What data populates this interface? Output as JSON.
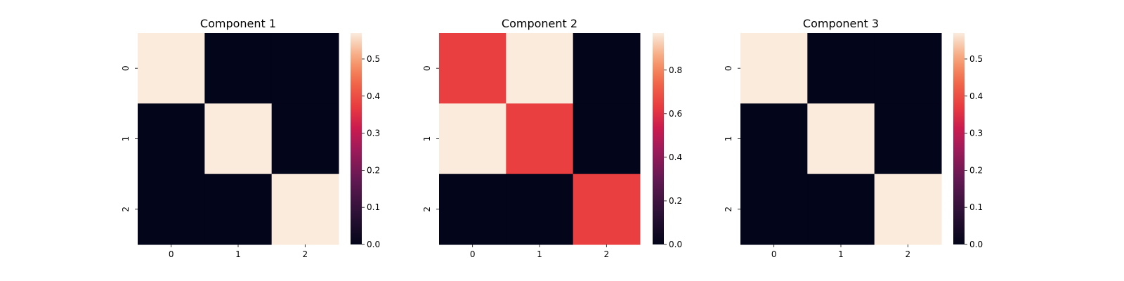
{
  "chart_data": [
    {
      "type": "heatmap",
      "title": "Component 1",
      "x_ticks": [
        "0",
        "1",
        "2"
      ],
      "y_ticks": [
        "0",
        "1",
        "2"
      ],
      "values": [
        [
          0.57,
          0.0,
          0.0
        ],
        [
          0.0,
          0.57,
          0.0
        ],
        [
          0.0,
          0.0,
          0.57
        ]
      ],
      "vmin": 0.0,
      "vmax": 0.57,
      "colorbar_ticks": [
        0.0,
        0.1,
        0.2,
        0.3,
        0.4,
        0.5
      ],
      "colormap": "rocket"
    },
    {
      "type": "heatmap",
      "title": "Component 2",
      "x_ticks": [
        "0",
        "1",
        "2"
      ],
      "y_ticks": [
        "0",
        "1",
        "2"
      ],
      "values": [
        [
          0.64,
          0.97,
          0.0
        ],
        [
          0.97,
          0.64,
          0.0
        ],
        [
          0.0,
          0.0,
          0.64
        ]
      ],
      "vmin": 0.0,
      "vmax": 0.97,
      "colorbar_ticks": [
        0.0,
        0.2,
        0.4,
        0.6,
        0.8
      ],
      "colormap": "rocket"
    },
    {
      "type": "heatmap",
      "title": "Component 3",
      "x_ticks": [
        "0",
        "1",
        "2"
      ],
      "y_ticks": [
        "0",
        "1",
        "2"
      ],
      "values": [
        [
          0.57,
          0.0,
          0.0
        ],
        [
          0.0,
          0.57,
          0.0
        ],
        [
          0.0,
          0.0,
          0.57
        ]
      ],
      "vmin": 0.0,
      "vmax": 0.57,
      "colorbar_ticks": [
        0.0,
        0.1,
        0.2,
        0.3,
        0.4,
        0.5
      ],
      "colormap": "rocket"
    }
  ]
}
